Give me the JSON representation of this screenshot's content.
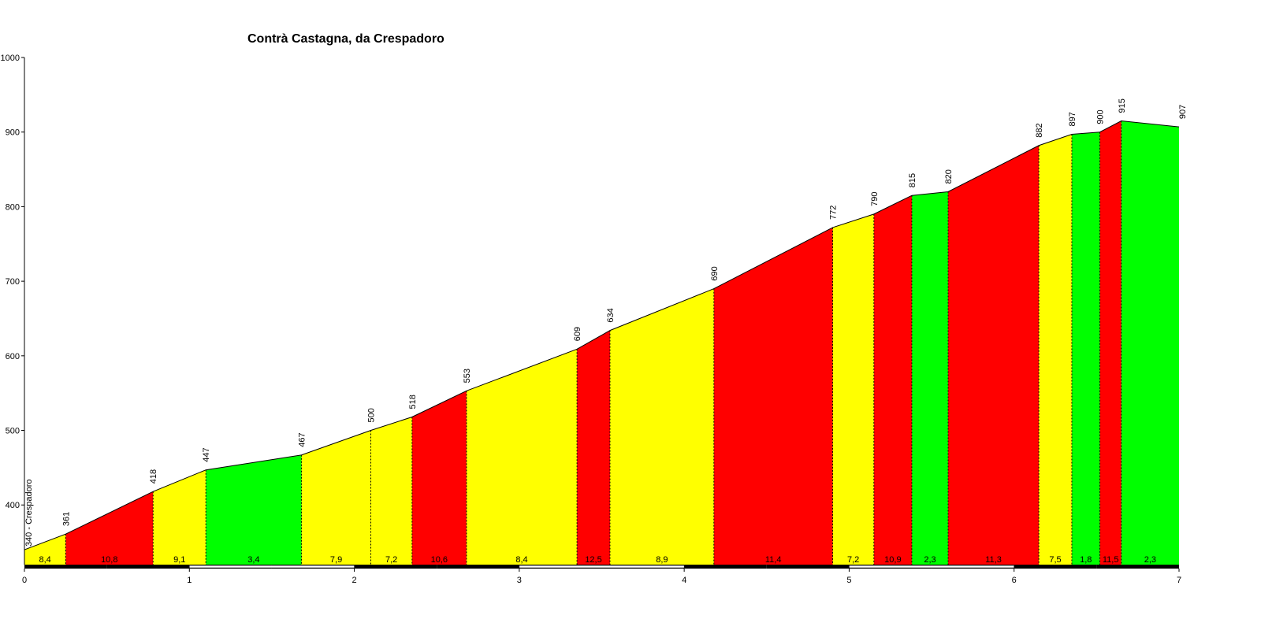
{
  "chart_data": {
    "type": "area",
    "title": "Contrà Castagna, da Crespadoro",
    "xlabel": "",
    "ylabel": "",
    "xlim": [
      0,
      7
    ],
    "ylim": [
      320,
      1000
    ],
    "x_ticks": [
      "0",
      "1",
      "2",
      "3",
      "4",
      "5",
      "6",
      "7"
    ],
    "y_ticks": [
      "400",
      "500",
      "600",
      "700",
      "800",
      "900",
      "1000"
    ],
    "start_label": "340 - Crespadoro",
    "colors": {
      "green": "#00ff00",
      "yellow": "#ffff00",
      "red": "#ff0000"
    },
    "points": [
      {
        "km": 0.0,
        "elev": 340,
        "label": "340 - Crespadoro"
      },
      {
        "km": 0.25,
        "elev": 361,
        "label": "361"
      },
      {
        "km": 0.78,
        "elev": 418,
        "label": "418"
      },
      {
        "km": 1.1,
        "elev": 447,
        "label": "447"
      },
      {
        "km": 1.68,
        "elev": 467,
        "label": "467"
      },
      {
        "km": 2.1,
        "elev": 500,
        "label": "500"
      },
      {
        "km": 2.35,
        "elev": 518,
        "label": "518"
      },
      {
        "km": 2.68,
        "elev": 553,
        "label": "553"
      },
      {
        "km": 3.35,
        "elev": 609,
        "label": "609"
      },
      {
        "km": 3.55,
        "elev": 634,
        "label": "634"
      },
      {
        "km": 4.18,
        "elev": 690,
        "label": "690"
      },
      {
        "km": 4.9,
        "elev": 772,
        "label": "772"
      },
      {
        "km": 5.15,
        "elev": 790,
        "label": "790"
      },
      {
        "km": 5.38,
        "elev": 815,
        "label": "815"
      },
      {
        "km": 5.6,
        "elev": 820,
        "label": "820"
      },
      {
        "km": 6.15,
        "elev": 882,
        "label": "882"
      },
      {
        "km": 6.35,
        "elev": 897,
        "label": "897"
      },
      {
        "km": 6.52,
        "elev": 900,
        "label": "900"
      },
      {
        "km": 6.65,
        "elev": 915,
        "label": "915"
      },
      {
        "km": 7.0,
        "elev": 907,
        "label": "907"
      }
    ],
    "segments": [
      {
        "gradient": "8,4",
        "color": "yellow"
      },
      {
        "gradient": "10,8",
        "color": "red"
      },
      {
        "gradient": "9,1",
        "color": "yellow"
      },
      {
        "gradient": "3,4",
        "color": "green"
      },
      {
        "gradient": "7,9",
        "color": "yellow"
      },
      {
        "gradient": "7,2",
        "color": "yellow"
      },
      {
        "gradient": "10,6",
        "color": "red"
      },
      {
        "gradient": "8,4",
        "color": "yellow"
      },
      {
        "gradient": "12,5",
        "color": "red"
      },
      {
        "gradient": "8,9",
        "color": "yellow"
      },
      {
        "gradient": "11,4",
        "color": "red"
      },
      {
        "gradient": "7,2",
        "color": "yellow"
      },
      {
        "gradient": "10,9",
        "color": "red"
      },
      {
        "gradient": "2,3",
        "color": "green"
      },
      {
        "gradient": "11,3",
        "color": "red"
      },
      {
        "gradient": "7,5",
        "color": "yellow"
      },
      {
        "gradient": "1,8",
        "color": "green"
      },
      {
        "gradient": "11,5",
        "color": "red"
      },
      {
        "gradient": "2,3",
        "color": "green"
      }
    ]
  }
}
